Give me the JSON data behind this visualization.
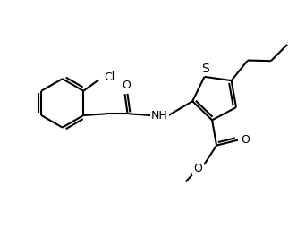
{
  "background_color": "#ffffff",
  "line_color": "#000000",
  "line_width": 1.5,
  "font_size": 9,
  "fig_width": 3.32,
  "fig_height": 2.54,
  "dpi": 100,
  "xlim": [
    0,
    10
  ],
  "ylim": [
    0,
    7.6
  ]
}
